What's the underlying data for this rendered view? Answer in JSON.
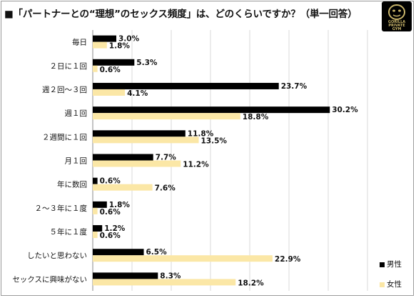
{
  "title": "■「パートナーとの“理想”のセックス頻度」は、どのくらいですか？（単一回答）",
  "logo": {
    "line1": "GORILLA",
    "line2": "PRIVATE",
    "line3": "GYM"
  },
  "colors": {
    "male": "#000000",
    "female": "#fbe7a6",
    "grid": "#d9d9d9"
  },
  "chart_data": {
    "type": "bar",
    "orientation": "horizontal",
    "categories": [
      "毎日",
      "２日に１回",
      "週２回～３回",
      "週１回",
      "２週間に１回",
      "月１回",
      "年に数回",
      "２～３年に１度",
      "５年に１度",
      "したいと思わない",
      "セックスに興味がない"
    ],
    "series": [
      {
        "name": "男性",
        "values": [
          3.0,
          5.3,
          23.7,
          30.2,
          11.8,
          7.7,
          0.6,
          1.8,
          1.2,
          6.5,
          8.3
        ]
      },
      {
        "name": "女性",
        "values": [
          1.8,
          0.6,
          4.1,
          18.8,
          13.5,
          11.2,
          7.6,
          0.6,
          0.6,
          22.9,
          18.2
        ]
      }
    ],
    "value_labels": {
      "male": [
        "3.0%",
        "5.3%",
        "23.7%",
        "30.2%",
        "11.8%",
        "7.7%",
        "0.6%",
        "1.8%",
        "1.2%",
        "6.5%",
        "8.3%"
      ],
      "female": [
        "1.8%",
        "0.6%",
        "4.1%",
        "18.8%",
        "13.5%",
        "11.2%",
        "7.6%",
        "0.6%",
        "0.6%",
        "22.9%",
        "18.2%"
      ]
    },
    "xlim": [
      0,
      35
    ],
    "grid": true,
    "legend_placement": "bottom-right"
  }
}
